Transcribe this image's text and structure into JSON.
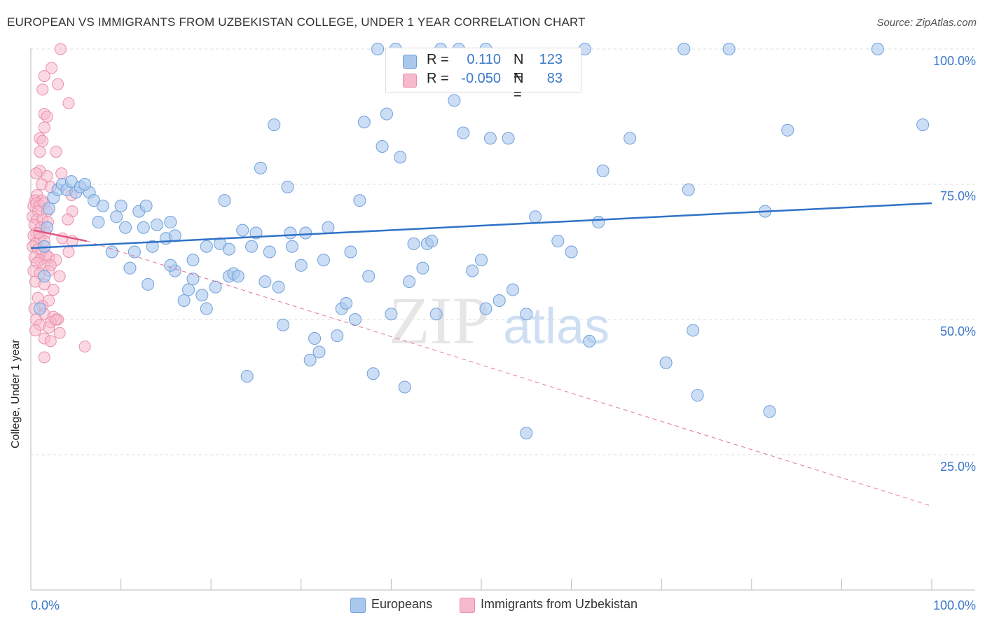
{
  "header": {
    "title": "EUROPEAN VS IMMIGRANTS FROM UZBEKISTAN COLLEGE, UNDER 1 YEAR CORRELATION CHART",
    "source": "Source: ZipAtlas.com"
  },
  "watermark": {
    "zip": "ZIP",
    "atlas": "atlas"
  },
  "legend": {
    "rows": [
      {
        "r_label": "R =",
        "r_value": "0.110",
        "n_label": "N =",
        "n_value": "123"
      },
      {
        "r_label": "R =",
        "r_value": "-0.050",
        "n_label": "N =",
        "n_value": "83"
      }
    ]
  },
  "bottom_legend": {
    "items": [
      "Europeans",
      "Immigrants from Uzbekistan"
    ]
  },
  "colors": {
    "europeans_fill": "#aac8ee",
    "europeans_stroke": "#6f9fd8",
    "europeans_line": "#2f72c8",
    "uzbek_fill": "#f7b9cc",
    "uzbek_stroke": "#e98fab",
    "uzbek_line": "#e0557f",
    "axis_text": "#3b78c9"
  },
  "chart_data": {
    "type": "scatter",
    "title": "EUROPEAN VS IMMIGRANTS FROM UZBEKISTAN COLLEGE, UNDER 1 YEAR CORRELATION CHART",
    "xlabel": "",
    "ylabel": "College, Under 1 year",
    "xlim": [
      0,
      100
    ],
    "ylim": [
      0,
      100
    ],
    "x_ticks": [
      "0.0%",
      "100.0%"
    ],
    "y_ticks": [
      {
        "value": 100,
        "label": "100.0%"
      },
      {
        "value": 75,
        "label": "75.0%"
      },
      {
        "value": 50,
        "label": "50.0%"
      },
      {
        "value": 25,
        "label": "25.0%"
      }
    ],
    "grid": true,
    "legend_position": "top-center",
    "series": [
      {
        "name": "Europeans",
        "r": 0.11,
        "n": 123,
        "trend": {
          "x": [
            0,
            100
          ],
          "y": [
            63.2,
            71.5
          ],
          "style": "solid"
        },
        "points": [
          [
            1.5,
            58.0
          ],
          [
            1.5,
            63.5
          ],
          [
            1.8,
            67.0
          ],
          [
            2.5,
            72.5
          ],
          [
            3.0,
            74.0
          ],
          [
            3.5,
            75.0
          ],
          [
            4.0,
            74.0
          ],
          [
            4.5,
            75.5
          ],
          [
            5.0,
            73.5
          ],
          [
            5.5,
            74.5
          ],
          [
            6.5,
            73.5
          ],
          [
            7.0,
            72.0
          ],
          [
            8.0,
            71.0
          ],
          [
            7.5,
            68.0
          ],
          [
            9.5,
            69.0
          ],
          [
            10.0,
            71.0
          ],
          [
            9.0,
            62.5
          ],
          [
            10.5,
            67.0
          ],
          [
            11.0,
            59.5
          ],
          [
            11.5,
            62.5
          ],
          [
            12.0,
            70.0
          ],
          [
            12.5,
            67.0
          ],
          [
            12.8,
            71.0
          ],
          [
            13.5,
            63.5
          ],
          [
            13.0,
            56.5
          ],
          [
            14.0,
            67.5
          ],
          [
            15.0,
            65.0
          ],
          [
            15.5,
            68.0
          ],
          [
            16.0,
            65.5
          ],
          [
            16.0,
            59.0
          ],
          [
            17.0,
            53.5
          ],
          [
            17.5,
            55.5
          ],
          [
            18.0,
            61.0
          ],
          [
            18.0,
            57.5
          ],
          [
            19.0,
            54.5
          ],
          [
            19.5,
            52.0
          ],
          [
            19.5,
            63.5
          ],
          [
            20.5,
            56.0
          ],
          [
            21.0,
            64.0
          ],
          [
            21.5,
            72.0
          ],
          [
            22.0,
            58.0
          ],
          [
            22.5,
            58.5
          ],
          [
            23.0,
            58.0
          ],
          [
            23.5,
            66.5
          ],
          [
            24.5,
            63.5
          ],
          [
            24.0,
            39.5
          ],
          [
            25.0,
            66.0
          ],
          [
            25.5,
            78.0
          ],
          [
            26.0,
            57.0
          ],
          [
            26.5,
            62.5
          ],
          [
            27.0,
            86.0
          ],
          [
            27.5,
            56.0
          ],
          [
            28.0,
            49.0
          ],
          [
            28.5,
            74.5
          ],
          [
            28.8,
            66.0
          ],
          [
            29.0,
            63.5
          ],
          [
            30.0,
            60.0
          ],
          [
            30.5,
            66.0
          ],
          [
            31.0,
            42.5
          ],
          [
            31.5,
            46.5
          ],
          [
            32.0,
            44.0
          ],
          [
            32.5,
            61.0
          ],
          [
            33.0,
            67.0
          ],
          [
            34.0,
            47.0
          ],
          [
            34.5,
            52.0
          ],
          [
            35.0,
            53.0
          ],
          [
            35.5,
            62.5
          ],
          [
            36.0,
            50.0
          ],
          [
            36.5,
            72.0
          ],
          [
            37.0,
            86.5
          ],
          [
            38.0,
            40.0
          ],
          [
            38.5,
            100.0
          ],
          [
            39.0,
            82.0
          ],
          [
            39.5,
            88.0
          ],
          [
            40.0,
            51.0
          ],
          [
            41.0,
            80.0
          ],
          [
            42.0,
            57.0
          ],
          [
            42.5,
            64.0
          ],
          [
            43.5,
            59.5
          ],
          [
            44.0,
            64.0
          ],
          [
            45.0,
            51.0
          ],
          [
            45.5,
            100.0
          ],
          [
            44.5,
            64.5
          ],
          [
            41.5,
            37.5
          ],
          [
            47.0,
            90.5
          ],
          [
            48.0,
            84.5
          ],
          [
            49.0,
            59.0
          ],
          [
            50.0,
            61.0
          ],
          [
            50.5,
            52.0
          ],
          [
            50.5,
            100.0
          ],
          [
            51.0,
            83.5
          ],
          [
            52.0,
            53.5
          ],
          [
            53.0,
            83.5
          ],
          [
            53.5,
            55.5
          ],
          [
            55.0,
            51.0
          ],
          [
            55.0,
            29.0
          ],
          [
            56.0,
            69.0
          ],
          [
            58.5,
            64.5
          ],
          [
            60.0,
            62.5
          ],
          [
            61.5,
            100.0
          ],
          [
            62.0,
            46.0
          ],
          [
            63.0,
            68.0
          ],
          [
            63.5,
            77.5
          ],
          [
            66.5,
            83.5
          ],
          [
            70.5,
            42.0
          ],
          [
            72.5,
            100.0
          ],
          [
            73.0,
            74.0
          ],
          [
            73.5,
            48.0
          ],
          [
            74.0,
            36.0
          ],
          [
            77.5,
            100.0
          ],
          [
            81.5,
            70.0
          ],
          [
            82.0,
            33.0
          ],
          [
            84.0,
            85.0
          ],
          [
            94.0,
            100.0
          ],
          [
            99.0,
            86.0
          ],
          [
            40.5,
            100.0
          ],
          [
            1.0,
            52.0
          ],
          [
            2.0,
            70.5
          ],
          [
            6.0,
            75.0
          ],
          [
            15.5,
            60.0
          ],
          [
            22.0,
            63.0
          ],
          [
            37.5,
            58.0
          ],
          [
            47.5,
            100.0
          ]
        ]
      },
      {
        "name": "Immigrants from Uzbekistan",
        "r": -0.05,
        "n": 83,
        "trend_solid": {
          "x": [
            0.3,
            6.2
          ],
          "y": [
            66.5,
            64.5
          ]
        },
        "trend_dashed": {
          "x": [
            6.2,
            100
          ],
          "y": [
            64.5,
            15.5
          ],
          "style": "dashed"
        },
        "points": [
          [
            3.3,
            100.0
          ],
          [
            2.3,
            96.5
          ],
          [
            1.5,
            95.0
          ],
          [
            3.0,
            93.5
          ],
          [
            1.3,
            92.5
          ],
          [
            4.2,
            90.0
          ],
          [
            1.5,
            88.0
          ],
          [
            1.8,
            87.5
          ],
          [
            1.5,
            85.5
          ],
          [
            1.0,
            83.5
          ],
          [
            1.3,
            83.0
          ],
          [
            1.0,
            81.0
          ],
          [
            2.8,
            81.0
          ],
          [
            1.0,
            77.5
          ],
          [
            3.4,
            77.0
          ],
          [
            0.6,
            77.0
          ],
          [
            1.8,
            76.5
          ],
          [
            1.2,
            75.0
          ],
          [
            2.2,
            74.5
          ],
          [
            0.7,
            73.0
          ],
          [
            0.5,
            72.0
          ],
          [
            1.2,
            72.0
          ],
          [
            4.5,
            73.0
          ],
          [
            0.3,
            71.0
          ],
          [
            0.6,
            71.5
          ],
          [
            1.0,
            71.0
          ],
          [
            1.5,
            71.5
          ],
          [
            0.8,
            70.0
          ],
          [
            1.8,
            70.0
          ],
          [
            4.6,
            70.0
          ],
          [
            0.2,
            69.0
          ],
          [
            0.7,
            68.5
          ],
          [
            1.3,
            68.5
          ],
          [
            0.4,
            67.5
          ],
          [
            1.1,
            67.0
          ],
          [
            4.1,
            68.5
          ],
          [
            0.6,
            66.0
          ],
          [
            1.6,
            66.0
          ],
          [
            0.3,
            65.5
          ],
          [
            1.0,
            65.0
          ],
          [
            3.5,
            65.0
          ],
          [
            0.5,
            64.0
          ],
          [
            1.5,
            64.5
          ],
          [
            4.6,
            64.5
          ],
          [
            0.2,
            63.5
          ],
          [
            0.8,
            63.0
          ],
          [
            1.2,
            62.5
          ],
          [
            1.7,
            62.0
          ],
          [
            4.2,
            62.5
          ],
          [
            0.4,
            61.5
          ],
          [
            1.0,
            61.0
          ],
          [
            2.0,
            61.5
          ],
          [
            2.8,
            61.0
          ],
          [
            0.7,
            60.5
          ],
          [
            1.5,
            60.0
          ],
          [
            2.2,
            60.0
          ],
          [
            0.3,
            59.0
          ],
          [
            1.0,
            58.5
          ],
          [
            2.0,
            59.0
          ],
          [
            3.2,
            58.0
          ],
          [
            0.5,
            57.0
          ],
          [
            1.5,
            56.5
          ],
          [
            2.5,
            55.5
          ],
          [
            0.8,
            54.0
          ],
          [
            2.0,
            53.5
          ],
          [
            1.3,
            52.5
          ],
          [
            0.4,
            52.0
          ],
          [
            1.5,
            51.0
          ],
          [
            2.5,
            50.5
          ],
          [
            3.0,
            50.0
          ],
          [
            0.6,
            50.0
          ],
          [
            2.2,
            49.5
          ],
          [
            1.0,
            49.0
          ],
          [
            2.0,
            48.5
          ],
          [
            0.5,
            48.0
          ],
          [
            3.2,
            47.5
          ],
          [
            1.5,
            46.5
          ],
          [
            2.2,
            46.0
          ],
          [
            6.0,
            45.0
          ],
          [
            1.5,
            43.0
          ],
          [
            2.8,
            50.0
          ],
          [
            0.9,
            66.0
          ],
          [
            1.9,
            68.0
          ]
        ]
      }
    ]
  }
}
